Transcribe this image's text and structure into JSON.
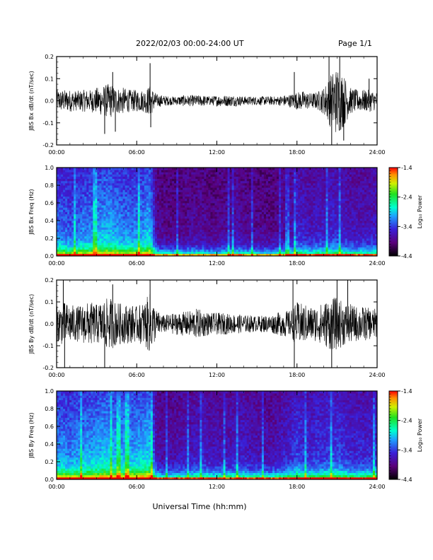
{
  "header": {
    "title": "2022/02/03  00:00-24:00 UT",
    "page": "Page 1/1"
  },
  "footer": {
    "xlabel": "Universal Time (hh:mm)"
  },
  "colors": {
    "background": "#ffffff",
    "axis": "#000000",
    "trace": "#000000"
  },
  "chart_data": [
    {
      "type": "line",
      "ylabel": "JBS Bx dB/dt (nT/sec)",
      "xlabel": "",
      "x_ticks": [
        "00:00",
        "06:00",
        "12:00",
        "18:00",
        "24:00"
      ],
      "y_ticks": [
        "-0.2",
        "-0.1",
        "0.0",
        "0.1",
        "0.2"
      ],
      "xlim_hours": [
        0,
        24
      ],
      "ylim": [
        -0.2,
        0.2
      ],
      "series": [
        {
          "x": [
            0,
            0.5,
            1,
            1.5,
            2,
            2.5,
            3,
            3.5,
            4,
            4.5,
            5,
            5.5,
            6,
            6.5,
            7,
            7.5,
            8,
            8.5,
            9,
            9.5,
            10,
            10.5,
            11,
            11.5,
            12,
            12.5,
            13,
            13.5,
            14,
            14.5,
            15,
            15.5,
            16,
            16.5,
            17,
            17.5,
            18,
            18.5,
            19,
            19.5,
            20,
            20.5,
            21,
            21.5,
            22,
            22.5,
            23,
            23.5,
            24
          ],
          "amplitude": [
            0.05,
            0.05,
            0.05,
            0.045,
            0.05,
            0.05,
            0.06,
            0.07,
            0.08,
            0.06,
            0.06,
            0.05,
            0.05,
            0.05,
            0.07,
            0.03,
            0.025,
            0.02,
            0.02,
            0.025,
            0.025,
            0.025,
            0.025,
            0.02,
            0.025,
            0.025,
            0.025,
            0.025,
            0.02,
            0.02,
            0.02,
            0.02,
            0.02,
            0.02,
            0.025,
            0.03,
            0.04,
            0.045,
            0.035,
            0.04,
            0.06,
            0.12,
            0.16,
            0.12,
            0.06,
            0.05,
            0.05,
            0.05,
            0.04
          ]
        }
      ],
      "spikes": [
        {
          "x": 3.6,
          "y": -0.15
        },
        {
          "x": 4.2,
          "y": 0.13
        },
        {
          "x": 4.4,
          "y": -0.14
        },
        {
          "x": 7.0,
          "y": 0.17
        },
        {
          "x": 7.05,
          "y": -0.12
        },
        {
          "x": 17.8,
          "y": 0.13
        },
        {
          "x": 20.4,
          "y": 0.2
        },
        {
          "x": 20.6,
          "y": -0.2
        },
        {
          "x": 21.2,
          "y": 0.2
        },
        {
          "x": 21.5,
          "y": -0.18
        },
        {
          "x": 23.4,
          "y": 0.1
        }
      ]
    },
    {
      "type": "heatmap",
      "ylabel": "JBS Bx Freq (Hz)",
      "colorbar_label": "Log₁₀ Power",
      "colorbar_ticks": [
        "-1.4",
        "-2.4",
        "-3.4",
        "-4.4"
      ],
      "clim": [
        -4.4,
        -1.4
      ],
      "x_ticks": [
        "00:00",
        "06:00",
        "12:00",
        "18:00",
        "24:00"
      ],
      "y_ticks": [
        "0.0",
        "0.2",
        "0.4",
        "0.6",
        "0.8",
        "1.0"
      ],
      "xlim_hours": [
        0,
        24
      ],
      "ylim": [
        0,
        1
      ],
      "activity": [
        0.55,
        0.55,
        0.5,
        0.55,
        0.6,
        0.6,
        0.65,
        0.7,
        0.7,
        0.65,
        0.6,
        0.6,
        0.6,
        0.65,
        0.75,
        0.15,
        0.12,
        0.1,
        0.1,
        0.12,
        0.15,
        0.15,
        0.15,
        0.1,
        0.1,
        0.15,
        0.15,
        0.2,
        0.15,
        0.12,
        0.12,
        0.1,
        0.1,
        0.12,
        0.15,
        0.2,
        0.35,
        0.3,
        0.25,
        0.3,
        0.3,
        0.35,
        0.35,
        0.3,
        0.25,
        0.25,
        0.25,
        0.25,
        0.3
      ]
    },
    {
      "type": "line",
      "ylabel": "JBS By dB/dt (nT/sec)",
      "xlabel": "",
      "x_ticks": [
        "00:00",
        "06:00",
        "12:00",
        "18:00",
        "24:00"
      ],
      "y_ticks": [
        "-0.2",
        "-0.1",
        "0.0",
        "0.1",
        "0.2"
      ],
      "xlim_hours": [
        0,
        24
      ],
      "ylim": [
        -0.2,
        0.2
      ],
      "series": [
        {
          "x": [
            0,
            0.5,
            1,
            1.5,
            2,
            2.5,
            3,
            3.5,
            4,
            4.5,
            5,
            5.5,
            6,
            6.5,
            7,
            7.5,
            8,
            8.5,
            9,
            9.5,
            10,
            10.5,
            11,
            11.5,
            12,
            12.5,
            13,
            13.5,
            14,
            14.5,
            15,
            15.5,
            16,
            16.5,
            17,
            17.5,
            18,
            18.5,
            19,
            19.5,
            20,
            20.5,
            21,
            21.5,
            22,
            22.5,
            23,
            23.5,
            24
          ],
          "amplitude": [
            0.08,
            0.1,
            0.09,
            0.08,
            0.09,
            0.1,
            0.09,
            0.11,
            0.12,
            0.1,
            0.09,
            0.09,
            0.08,
            0.1,
            0.14,
            0.06,
            0.04,
            0.045,
            0.05,
            0.055,
            0.06,
            0.07,
            0.06,
            0.05,
            0.05,
            0.05,
            0.045,
            0.045,
            0.04,
            0.04,
            0.035,
            0.04,
            0.04,
            0.05,
            0.06,
            0.06,
            0.1,
            0.09,
            0.08,
            0.08,
            0.1,
            0.12,
            0.12,
            0.1,
            0.09,
            0.08,
            0.08,
            0.07,
            0.07
          ]
        }
      ],
      "spikes": [
        {
          "x": 0.5,
          "y": 0.2
        },
        {
          "x": 0.6,
          "y": -0.2
        },
        {
          "x": 3.6,
          "y": -0.2
        },
        {
          "x": 4.2,
          "y": 0.18
        },
        {
          "x": 7.0,
          "y": 0.2
        },
        {
          "x": 17.7,
          "y": 0.2
        },
        {
          "x": 17.8,
          "y": -0.2
        },
        {
          "x": 20.6,
          "y": -0.2
        },
        {
          "x": 21.0,
          "y": 0.2
        },
        {
          "x": 21.8,
          "y": 0.2
        }
      ]
    },
    {
      "type": "heatmap",
      "ylabel": "JBS By Freq (Hz)",
      "colorbar_label": "Log₁₀ Power",
      "colorbar_ticks": [
        "-1.4",
        "-2.4",
        "-3.4",
        "-4.4"
      ],
      "clim": [
        -4.4,
        -1.4
      ],
      "x_ticks": [
        "00:00",
        "06:00",
        "12:00",
        "18:00",
        "24:00"
      ],
      "y_ticks": [
        "0.0",
        "0.2",
        "0.4",
        "0.6",
        "0.8",
        "1.0"
      ],
      "xlim_hours": [
        0,
        24
      ],
      "ylim": [
        0,
        1
      ],
      "activity": [
        0.65,
        0.65,
        0.6,
        0.65,
        0.65,
        0.7,
        0.7,
        0.75,
        0.75,
        0.7,
        0.7,
        0.7,
        0.7,
        0.75,
        0.8,
        0.2,
        0.18,
        0.2,
        0.22,
        0.25,
        0.25,
        0.3,
        0.3,
        0.25,
        0.25,
        0.25,
        0.25,
        0.3,
        0.3,
        0.25,
        0.25,
        0.22,
        0.2,
        0.25,
        0.3,
        0.35,
        0.45,
        0.4,
        0.35,
        0.4,
        0.4,
        0.45,
        0.45,
        0.4,
        0.35,
        0.35,
        0.35,
        0.35,
        0.4
      ]
    }
  ]
}
